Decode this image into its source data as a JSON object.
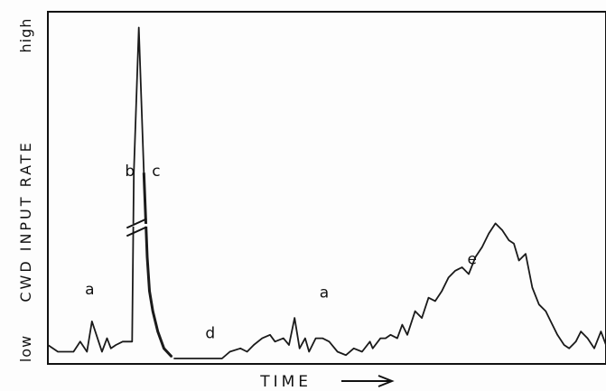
{
  "chart_data": {
    "type": "line",
    "title": "",
    "xlabel": "TIME",
    "ylabel": "CWD INPUT RATE",
    "y_tick_labels": [
      "low",
      "high"
    ],
    "x_axis_has_arrow": true,
    "grid": false,
    "legend": "none",
    "ylim": [
      0,
      100
    ],
    "x_note": "relative time (0–100), no numeric ticks shown",
    "series": [
      {
        "values_x": [
          0,
          1.8,
          4.6,
          5.8,
          7.0,
          7.9,
          9.1,
          9.7,
          10.6,
          11.3,
          12.2,
          13.4,
          14.3,
          15.1,
          15.4,
          16.3,
          17.2,
          17.8,
          18.2,
          18.8,
          19.7,
          20.8,
          22.2,
          22.6,
          31.2,
          32.6,
          34.5,
          35.7,
          36.9,
          38.4,
          39.8,
          40.7,
          42.2,
          43.2,
          44.2,
          45.1,
          46.1,
          46.8,
          48.0,
          49.2,
          50.4,
          51.9,
          53.4,
          54.8,
          56.3,
          57.7,
          58.2,
          59.6,
          60.5,
          61.4,
          62.6,
          63.5,
          64.4,
          65.8,
          67.0,
          68.2,
          69.4,
          70.6,
          71.8,
          73.0,
          74.2,
          75.4,
          76.6,
          77.8,
          79.0,
          80.2,
          81.4,
          82.6,
          83.5,
          84.4,
          85.6,
          86.8,
          88.0,
          89.2,
          90.1,
          91.3,
          92.5,
          93.4,
          94.6,
          95.5,
          96.7,
          97.9,
          99.1,
          100
        ],
        "values_y": [
          4,
          2,
          2,
          5,
          2,
          11,
          5,
          2,
          6,
          3,
          4,
          5,
          5,
          5,
          55,
          98,
          55,
          30,
          20,
          14,
          8,
          3,
          0.5,
          0,
          0,
          2,
          3,
          2,
          4,
          6,
          7,
          5,
          6,
          4,
          12,
          3,
          6,
          2,
          6,
          6,
          5,
          2,
          1,
          3,
          2,
          5,
          3,
          6,
          6,
          7,
          6,
          10,
          7,
          14,
          12,
          18,
          17,
          20,
          24,
          26,
          27,
          25,
          30,
          33,
          37,
          40,
          38,
          35,
          34,
          29,
          31,
          21,
          16,
          14,
          11,
          7,
          4,
          3,
          5,
          8,
          6,
          3,
          8,
          4
        ],
        "color": "#1a1a1a",
        "breaks_after_index": [
          22
        ]
      }
    ],
    "axis_break": {
      "on_x": 15.9,
      "style": "double slash"
    },
    "annotations": [
      {
        "text": "a",
        "x": 7.5,
        "y": 19
      },
      {
        "text": "b",
        "x": 14.7,
        "y": 54
      },
      {
        "text": "c",
        "x": 19.4,
        "y": 54
      },
      {
        "text": "d",
        "x": 29.1,
        "y": 6
      },
      {
        "text": "a",
        "x": 49.5,
        "y": 18
      },
      {
        "text": "e",
        "x": 76.0,
        "y": 28
      }
    ]
  }
}
